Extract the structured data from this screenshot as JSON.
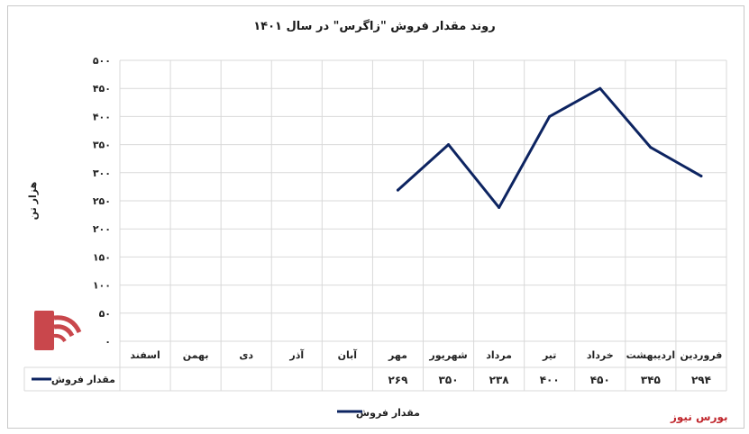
{
  "chart_data": {
    "type": "line",
    "title": "روند مقدار فروش \"زاگرس\" در سال ۱۴۰۱",
    "ylabel": "هزار تن",
    "xlabel": "",
    "ylim": [
      0,
      500
    ],
    "ytick_labels": [
      "۰",
      "۵۰",
      "۱۰۰",
      "۱۵۰",
      "۲۰۰",
      "۲۵۰",
      "۳۰۰",
      "۳۵۰",
      "۴۰۰",
      "۴۵۰",
      "۵۰۰"
    ],
    "categories": [
      "فروردین",
      "اردیبهشت",
      "خرداد",
      "تیر",
      "مرداد",
      "شهریور",
      "مهر",
      "آبان",
      "آذر",
      "دی",
      "بهمن",
      "اسفند"
    ],
    "series": [
      {
        "name": "مقدار فروش",
        "color": "#0d2461",
        "values": [
          294,
          345,
          450,
          400,
          238,
          350,
          269,
          null,
          null,
          null,
          null,
          null
        ],
        "value_labels": [
          "۲۹۴",
          "۳۴۵",
          "۴۵۰",
          "۴۰۰",
          "۲۳۸",
          "۳۵۰",
          "۲۶۹",
          "",
          "",
          "",
          "",
          ""
        ]
      }
    ],
    "grid": true,
    "legend_position": "bottom",
    "data_table": true
  },
  "watermark": "بورس نیوز",
  "logo_text": "بورس نیوز"
}
